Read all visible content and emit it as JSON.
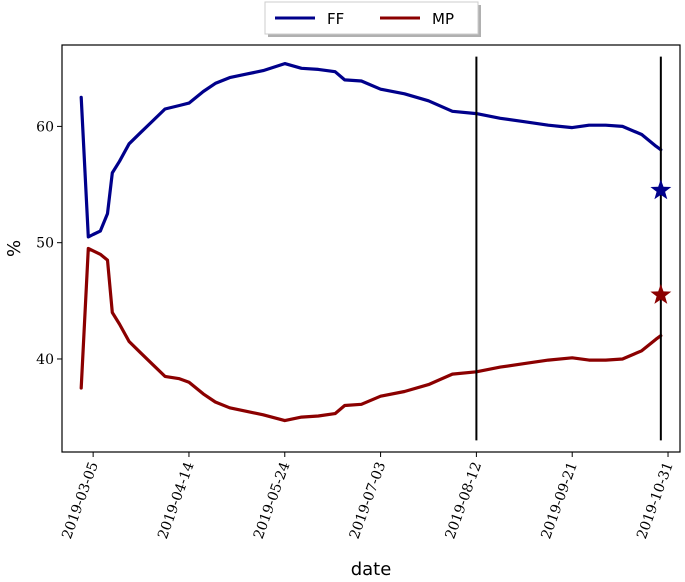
{
  "chart_data": {
    "type": "line",
    "title": "",
    "xlabel": "date",
    "ylabel": "%",
    "ylim": [
      32,
      67
    ],
    "x_tick_labels": [
      "2019-03-05",
      "2019-04-14",
      "2019-05-24",
      "2019-07-03",
      "2019-08-12",
      "2019-09-21",
      "2019-10-31"
    ],
    "y_ticks": [
      40,
      50,
      60
    ],
    "y_tick_labels": [
      "40",
      "50",
      "60"
    ],
    "legend": {
      "placement": "top-center",
      "entries": [
        "FF",
        "MP"
      ]
    },
    "grid": false,
    "series": [
      {
        "name": "FF",
        "color": "#00008b",
        "points": [
          [
            "2019-02-28",
            62.5
          ],
          [
            "2019-03-03",
            50.5
          ],
          [
            "2019-03-05",
            50.7
          ],
          [
            "2019-03-08",
            51.0
          ],
          [
            "2019-03-11",
            52.5
          ],
          [
            "2019-03-13",
            56.0
          ],
          [
            "2019-03-16",
            57.0
          ],
          [
            "2019-03-20",
            58.5
          ],
          [
            "2019-03-25",
            59.5
          ],
          [
            "2019-03-30",
            60.5
          ],
          [
            "2019-04-04",
            61.5
          ],
          [
            "2019-04-10",
            61.8
          ],
          [
            "2019-04-14",
            62.0
          ],
          [
            "2019-04-20",
            63.0
          ],
          [
            "2019-04-25",
            63.7
          ],
          [
            "2019-05-01",
            64.2
          ],
          [
            "2019-05-08",
            64.5
          ],
          [
            "2019-05-15",
            64.8
          ],
          [
            "2019-05-24",
            65.4
          ],
          [
            "2019-05-31",
            65.0
          ],
          [
            "2019-06-07",
            64.9
          ],
          [
            "2019-06-14",
            64.7
          ],
          [
            "2019-06-18",
            64.0
          ],
          [
            "2019-06-25",
            63.9
          ],
          [
            "2019-07-03",
            63.2
          ],
          [
            "2019-07-13",
            62.8
          ],
          [
            "2019-07-23",
            62.2
          ],
          [
            "2019-08-02",
            61.3
          ],
          [
            "2019-08-12",
            61.1
          ],
          [
            "2019-08-22",
            60.7
          ],
          [
            "2019-09-01",
            60.4
          ],
          [
            "2019-09-11",
            60.1
          ],
          [
            "2019-09-21",
            59.9
          ],
          [
            "2019-09-28",
            60.1
          ],
          [
            "2019-10-05",
            60.1
          ],
          [
            "2019-10-12",
            60.0
          ],
          [
            "2019-10-20",
            59.3
          ],
          [
            "2019-10-26",
            58.3
          ],
          [
            "2019-10-28",
            58.0
          ]
        ],
        "marker": [
          "2019-10-28",
          54.5
        ]
      },
      {
        "name": "MP",
        "color": "#8b0000",
        "points": [
          [
            "2019-02-28",
            37.5
          ],
          [
            "2019-03-03",
            49.5
          ],
          [
            "2019-03-05",
            49.3
          ],
          [
            "2019-03-08",
            49.0
          ],
          [
            "2019-03-11",
            48.5
          ],
          [
            "2019-03-13",
            44.0
          ],
          [
            "2019-03-16",
            43.0
          ],
          [
            "2019-03-20",
            41.5
          ],
          [
            "2019-03-25",
            40.5
          ],
          [
            "2019-03-30",
            39.5
          ],
          [
            "2019-04-04",
            38.5
          ],
          [
            "2019-04-10",
            38.3
          ],
          [
            "2019-04-14",
            38.0
          ],
          [
            "2019-04-20",
            37.0
          ],
          [
            "2019-04-25",
            36.3
          ],
          [
            "2019-05-01",
            35.8
          ],
          [
            "2019-05-08",
            35.5
          ],
          [
            "2019-05-15",
            35.2
          ],
          [
            "2019-05-24",
            34.7
          ],
          [
            "2019-05-31",
            35.0
          ],
          [
            "2019-06-07",
            35.1
          ],
          [
            "2019-06-14",
            35.3
          ],
          [
            "2019-06-18",
            36.0
          ],
          [
            "2019-06-25",
            36.1
          ],
          [
            "2019-07-03",
            36.8
          ],
          [
            "2019-07-13",
            37.2
          ],
          [
            "2019-07-23",
            37.8
          ],
          [
            "2019-08-02",
            38.7
          ],
          [
            "2019-08-12",
            38.9
          ],
          [
            "2019-08-22",
            39.3
          ],
          [
            "2019-09-01",
            39.6
          ],
          [
            "2019-09-11",
            39.9
          ],
          [
            "2019-09-21",
            40.1
          ],
          [
            "2019-09-28",
            39.9
          ],
          [
            "2019-10-05",
            39.9
          ],
          [
            "2019-10-12",
            40.0
          ],
          [
            "2019-10-20",
            40.7
          ],
          [
            "2019-10-26",
            41.7
          ],
          [
            "2019-10-28",
            42.0
          ]
        ],
        "marker": [
          "2019-10-28",
          45.5
        ]
      }
    ],
    "vertical_lines": [
      {
        "x": "2019-08-12",
        "y_from": 33,
        "y_to": 66
      },
      {
        "x": "2019-10-28",
        "y_from": 33,
        "y_to": 66
      }
    ]
  }
}
